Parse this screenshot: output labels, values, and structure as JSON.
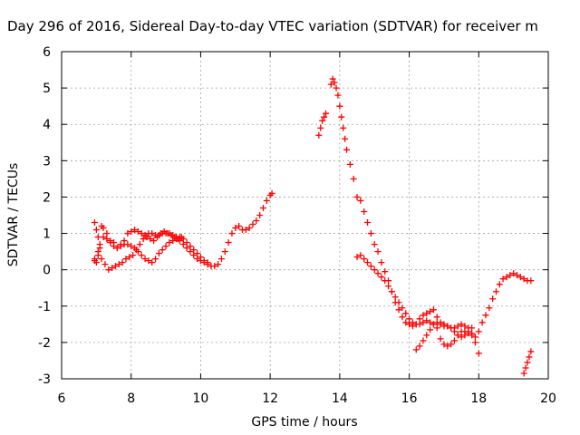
{
  "chart_data": {
    "type": "scatter",
    "title": "Day 296 of 2016, Sidereal Day-to-day VTEC variation (SDTVAR) for receiver m",
    "xlabel": "GPS time / hours",
    "ylabel": "SDTVAR / TECUs",
    "xlim": [
      6,
      20
    ],
    "ylim": [
      -3,
      6
    ],
    "xticks": [
      "6",
      "8",
      "10",
      "12",
      "14",
      "16",
      "18",
      "20"
    ],
    "yticks": [
      "-3",
      "-2",
      "-1",
      "0",
      "1",
      "2",
      "3",
      "4",
      "5",
      "6"
    ],
    "grid": true,
    "legend": "none",
    "marker": "+",
    "color": "#ff0000",
    "series": [
      {
        "x": [
          6.95,
          7.0,
          7.05,
          7.1,
          7.15,
          7.2,
          7.3,
          7.4,
          7.5,
          7.6,
          7.7,
          7.8,
          7.9,
          8.0,
          8.1,
          8.2,
          8.3,
          8.4,
          8.5,
          8.6,
          8.7,
          8.8,
          8.9,
          9.0,
          9.1,
          9.2,
          9.3,
          9.4,
          9.5,
          9.6,
          9.7,
          9.8,
          9.9,
          10.0,
          10.1,
          10.2,
          10.3,
          10.4,
          10.5,
          10.6,
          10.7,
          10.8,
          10.9,
          11.0,
          11.1,
          11.2,
          11.3,
          11.4,
          11.5,
          11.6,
          11.7,
          11.8,
          11.9,
          12.0,
          12.05
        ],
        "y": [
          1.3,
          1.1,
          0.9,
          0.7,
          1.2,
          1.15,
          1.0,
          0.8,
          0.75,
          0.6,
          0.7,
          0.8,
          1.0,
          1.05,
          1.1,
          1.05,
          1.0,
          0.95,
          1.0,
          1.0,
          0.95,
          0.95,
          1.0,
          1.0,
          1.0,
          0.95,
          0.9,
          0.8,
          0.7,
          0.6,
          0.5,
          0.4,
          0.3,
          0.25,
          0.2,
          0.15,
          0.1,
          0.1,
          0.15,
          0.3,
          0.5,
          0.75,
          1.0,
          1.15,
          1.2,
          1.1,
          1.1,
          1.15,
          1.25,
          1.35,
          1.5,
          1.7,
          1.9,
          2.05,
          2.1
        ]
      },
      {
        "x": [
          6.95,
          7.0,
          7.05,
          7.1,
          7.2,
          7.3,
          7.4,
          7.5,
          7.6,
          7.7,
          7.8,
          7.9,
          8.0,
          8.1,
          8.2,
          8.3,
          8.4,
          8.5,
          8.6,
          8.7,
          8.8,
          8.9,
          9.0,
          9.1,
          9.2,
          9.3,
          9.4,
          9.5,
          9.6,
          9.7,
          9.8,
          9.9,
          10.0,
          10.1,
          10.2
        ],
        "y": [
          0.25,
          0.2,
          0.4,
          0.6,
          0.9,
          0.85,
          0.75,
          0.65,
          0.6,
          0.65,
          0.7,
          0.7,
          0.65,
          0.6,
          0.5,
          0.4,
          0.3,
          0.25,
          0.2,
          0.3,
          0.45,
          0.55,
          0.65,
          0.75,
          0.8,
          0.85,
          0.9,
          0.85,
          0.75,
          0.65,
          0.55,
          0.45,
          0.35,
          0.25,
          0.2
        ]
      },
      {
        "x": [
          6.95,
          7.05,
          7.15,
          7.25,
          7.35,
          7.45,
          7.55,
          7.65,
          7.75,
          7.85,
          7.95,
          8.05,
          8.15,
          8.25,
          8.35,
          8.45,
          8.55,
          8.65,
          8.75,
          8.85,
          8.95,
          9.05,
          9.15,
          9.25,
          9.35,
          9.45
        ],
        "y": [
          0.3,
          0.5,
          0.3,
          0.15,
          0.0,
          0.05,
          0.1,
          0.15,
          0.2,
          0.3,
          0.35,
          0.4,
          0.55,
          0.7,
          0.85,
          0.9,
          0.85,
          0.8,
          0.9,
          1.0,
          1.05,
          1.0,
          0.95,
          0.9,
          0.85,
          0.9
        ]
      },
      {
        "x": [
          13.4,
          13.45,
          13.5,
          13.55,
          13.6
        ],
        "y": [
          3.7,
          3.9,
          4.1,
          4.2,
          4.3
        ]
      },
      {
        "x": [
          13.75,
          13.8,
          13.85,
          13.9,
          13.95,
          14.0,
          14.05,
          14.1,
          14.15,
          14.2,
          14.3,
          14.4,
          14.5,
          14.6,
          14.7,
          14.8,
          14.9,
          15.0,
          15.1,
          15.2,
          15.3,
          15.4,
          15.5,
          15.6,
          15.7,
          15.8,
          15.9,
          16.0,
          16.1,
          16.2,
          16.3,
          16.4,
          16.5,
          16.6,
          16.7,
          16.8,
          16.9,
          17.0,
          17.1,
          17.2,
          17.3,
          17.4,
          17.5,
          17.6,
          17.7,
          17.8,
          17.9,
          18.0
        ],
        "y": [
          5.1,
          5.25,
          5.15,
          5.0,
          4.8,
          4.5,
          4.2,
          3.9,
          3.6,
          3.3,
          2.9,
          2.5,
          2.0,
          1.9,
          1.6,
          1.3,
          1.0,
          0.7,
          0.5,
          0.2,
          -0.05,
          -0.3,
          -0.6,
          -0.9,
          -1.1,
          -1.3,
          -1.45,
          -1.5,
          -1.55,
          -1.5,
          -1.35,
          -1.25,
          -1.2,
          -1.15,
          -1.1,
          -1.3,
          -1.5,
          -1.55,
          -1.55,
          -1.6,
          -1.6,
          -1.55,
          -1.5,
          -1.55,
          -1.6,
          -1.75,
          -2.0,
          -2.3
        ]
      },
      {
        "x": [
          14.5,
          14.6,
          14.7,
          14.8,
          14.9,
          15.0,
          15.1,
          15.2,
          15.3,
          15.4,
          15.5,
          15.6,
          15.7,
          15.8,
          15.9,
          16.0,
          16.1,
          16.2,
          16.3,
          16.4,
          16.5,
          16.6,
          16.7,
          16.8,
          16.9,
          17.0,
          17.1,
          17.2,
          17.3,
          17.4,
          17.5,
          17.6,
          17.7,
          17.8,
          17.9,
          18.0,
          18.1,
          18.2,
          18.3,
          18.4,
          18.5,
          18.6,
          18.7,
          18.8,
          18.9,
          19.0,
          19.1,
          19.2,
          19.3,
          19.4,
          19.5
        ],
        "y": [
          0.35,
          0.4,
          0.3,
          0.2,
          0.1,
          0.0,
          -0.1,
          -0.2,
          -0.3,
          -0.45,
          -0.6,
          -0.75,
          -0.9,
          -1.05,
          -1.2,
          -1.35,
          -1.45,
          -1.5,
          -1.5,
          -1.45,
          -1.4,
          -1.45,
          -1.5,
          -1.6,
          -1.9,
          -2.05,
          -2.1,
          -2.05,
          -1.95,
          -1.8,
          -1.7,
          -1.7,
          -1.75,
          -1.8,
          -1.85,
          -1.7,
          -1.45,
          -1.25,
          -1.05,
          -0.8,
          -0.6,
          -0.4,
          -0.25,
          -0.2,
          -0.15,
          -0.1,
          -0.15,
          -0.2,
          -0.25,
          -0.3,
          -0.3
        ]
      },
      {
        "x": [
          16.2,
          16.3,
          16.4,
          16.5,
          16.6,
          16.7,
          16.8,
          16.9,
          17.0,
          17.1,
          17.2,
          17.3,
          17.4,
          17.5,
          17.6,
          17.7,
          17.8
        ],
        "y": [
          -2.2,
          -2.1,
          -1.95,
          -1.8,
          -1.65,
          -1.5,
          -1.45,
          -1.45,
          -1.5,
          -1.55,
          -1.6,
          -1.7,
          -1.8,
          -1.85,
          -1.8,
          -1.7,
          -1.6
        ]
      },
      {
        "x": [
          19.3,
          19.35,
          19.4,
          19.45,
          19.5
        ],
        "y": [
          -2.85,
          -2.7,
          -2.55,
          -2.4,
          -2.25
        ]
      }
    ]
  }
}
